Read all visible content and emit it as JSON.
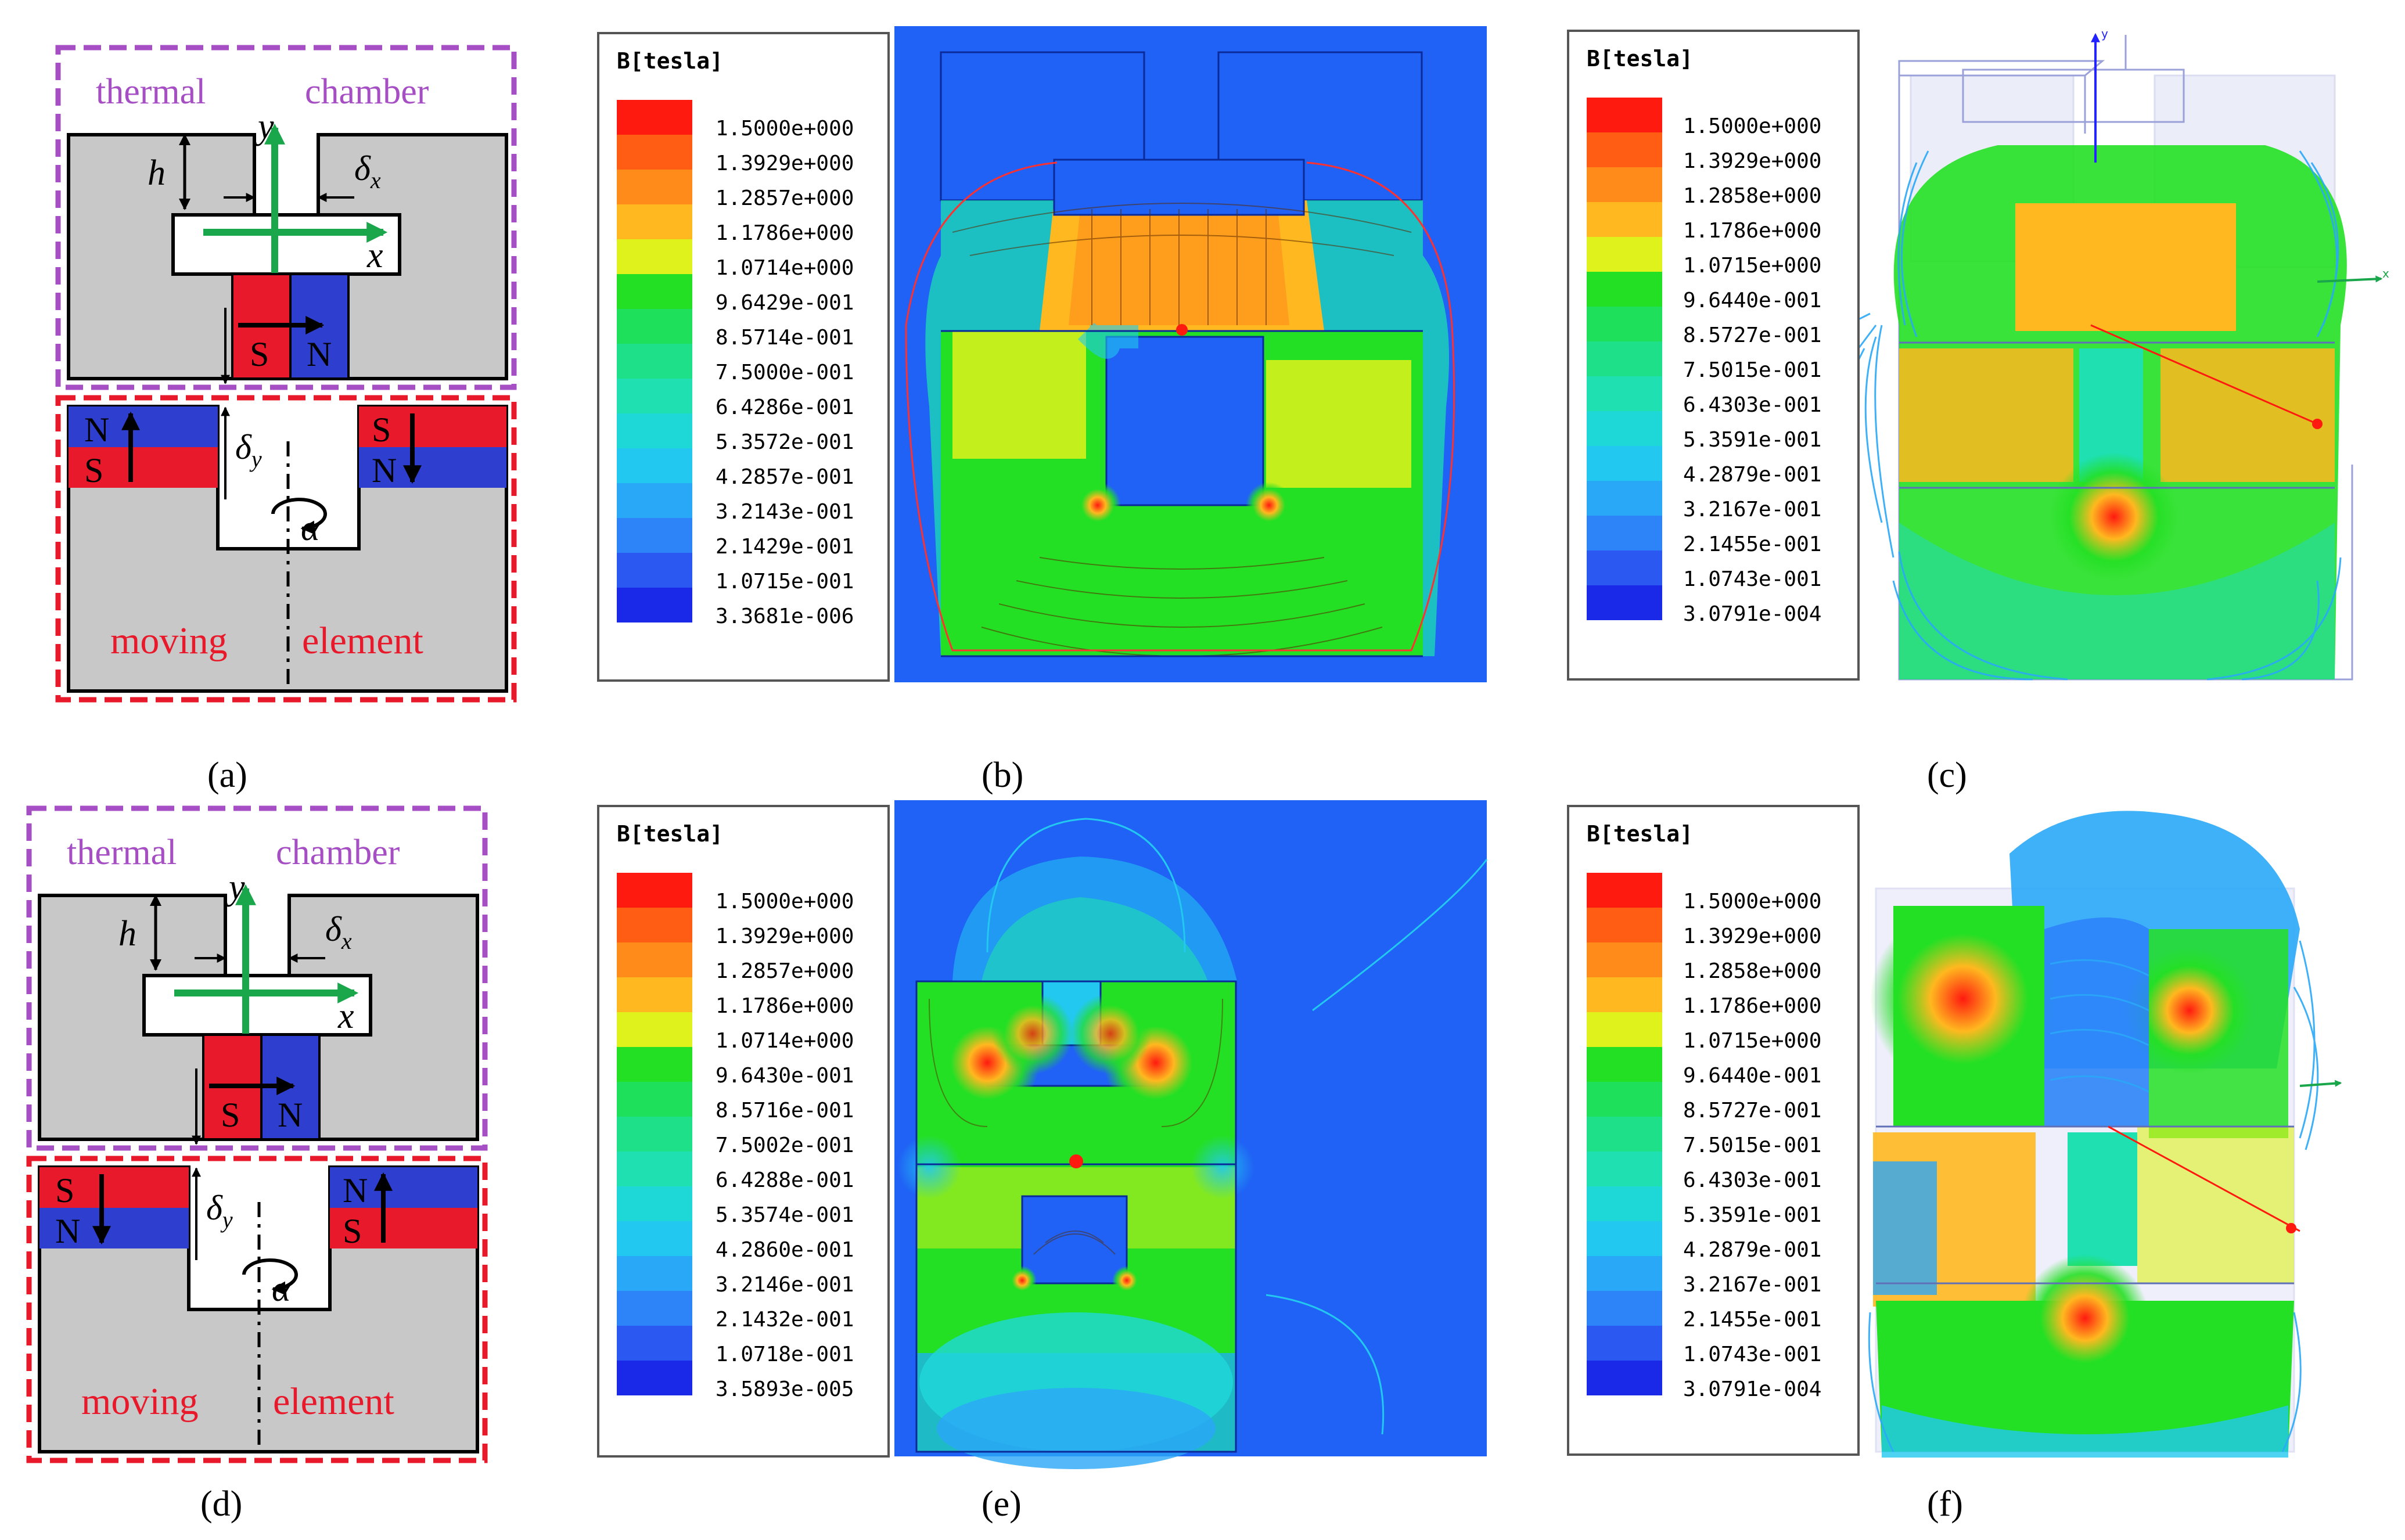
{
  "figure": {
    "panel_labels": [
      "(a)",
      "(b)",
      "(c)",
      "(d)",
      "(e)",
      "(f)"
    ],
    "schematic": {
      "chamber_label_left": "thermal",
      "chamber_label_right": "chamber",
      "element_label_left": "moving",
      "element_label_right": "element",
      "h_label": "h",
      "x_label": "x",
      "y_label": "y",
      "dx_symbol": "δ",
      "dx_sub": "x",
      "dy_symbol": "δ",
      "dy_sub": "y",
      "alpha_label": "α",
      "pole_s": "S",
      "pole_n": "N"
    },
    "colors": {
      "red": "#e8192a",
      "blue": "#2e3fd0",
      "gray": "#c8c8c8",
      "green": "#1aa64a",
      "purple": "#a64fc4",
      "field_bg": "#1f62f5"
    }
  },
  "legend_b": {
    "title": "B[tesla]",
    "values": [
      "1.5000e+000",
      "1.3929e+000",
      "1.2857e+000",
      "1.1786e+000",
      "1.0714e+000",
      "9.6429e-001",
      "8.5714e-001",
      "7.5000e-001",
      "6.4286e-001",
      "5.3572e-001",
      "4.2857e-001",
      "3.2143e-001",
      "2.1429e-001",
      "1.0715e-001",
      "3.3681e-006"
    ]
  },
  "legend_c": {
    "title": "B[tesla]",
    "values": [
      "1.5000e+000",
      "1.3929e+000",
      "1.2858e+000",
      "1.1786e+000",
      "1.0715e+000",
      "9.6440e-001",
      "8.5727e-001",
      "7.5015e-001",
      "6.4303e-001",
      "5.3591e-001",
      "4.2879e-001",
      "3.2167e-001",
      "2.1455e-001",
      "1.0743e-001",
      "3.0791e-004"
    ]
  },
  "legend_e": {
    "title": "B[tesla]",
    "values": [
      "1.5000e+000",
      "1.3929e+000",
      "1.2857e+000",
      "1.1786e+000",
      "1.0714e+000",
      "9.6430e-001",
      "8.5716e-001",
      "7.5002e-001",
      "6.4288e-001",
      "5.3574e-001",
      "4.2860e-001",
      "3.2146e-001",
      "2.1432e-001",
      "1.0718e-001",
      "3.5893e-005"
    ]
  },
  "legend_f": {
    "title": "B[tesla]",
    "values": [
      "1.5000e+000",
      "1.3929e+000",
      "1.2858e+000",
      "1.1786e+000",
      "1.0715e+000",
      "9.6440e-001",
      "8.5727e-001",
      "7.5015e-001",
      "6.4303e-001",
      "5.3591e-001",
      "4.2879e-001",
      "3.2167e-001",
      "2.1455e-001",
      "1.0743e-001",
      "3.0791e-004"
    ]
  },
  "legend_swatches": [
    "#ff1a10",
    "#ff5c14",
    "#ff8c1a",
    "#ffb81f",
    "#dff21c",
    "#24e024",
    "#1fe05a",
    "#1de088",
    "#1ee0b0",
    "#1ed8d8",
    "#22c8f0",
    "#2aa8f8",
    "#2c84f8",
    "#2a58f0",
    "#1a28e8"
  ],
  "axes_3d": {
    "y": "y",
    "x": "x"
  }
}
